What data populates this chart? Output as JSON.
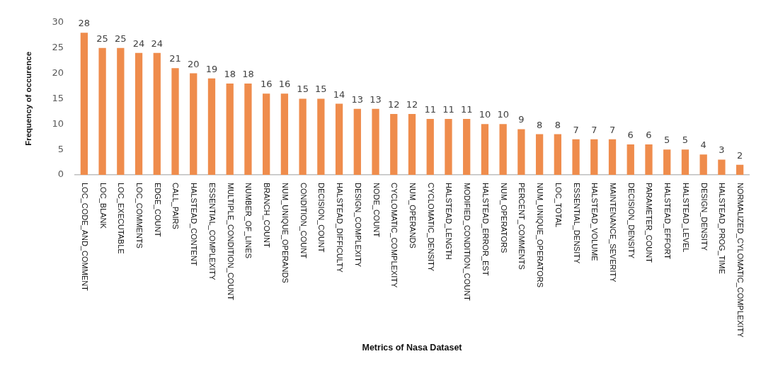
{
  "chart_data": {
    "type": "bar",
    "xlabel": "Metrics of Nasa Dataset",
    "ylabel": "Frequency of occurence",
    "categories": [
      "LOC_CODE_AND_COMMENT",
      "LOC_BLANK",
      "LOC_EXECUTABLE",
      "LOC_COMMENTS",
      "EDGE_COUNT",
      "CALL_PAIRS",
      "HALSTEAD_CONTENT",
      "ESSENTIAL_COMPLEXITY",
      "MULTIPLE_CONDITION_COUNT",
      "NUMBER_OF_LINES",
      "BRANCH_COUNT",
      "NUM_UNIQUE_OPERANDS",
      "CONDITION_COUNT",
      "DECISION_COUNT",
      "HALSTEAD_DIFFICULTY",
      "DESIGN_COMPLEXITY",
      "NODE_COUNT",
      "CYCLOMATIC_COMPLEXITY",
      "NUM_OPERANDS",
      "CYCLOMATIC_DENSITY",
      "HALSTEAD_LENGTH",
      "MODIFIED_CONDITION_COUNT",
      "HALSTEAD_ERROR_EST",
      "NUM_OPERATORS",
      "PERCENT_COMMENTS",
      "NUM_UNIQUE_OPERATORS",
      "LOC_TOTAL",
      "ESSENTIAL_DENSITY",
      "HALSTEAD_VOLUME",
      "MAINTENANCE_SEVERITY",
      "DECISION_DENSITY",
      "PARAMETER_COUNT",
      "HALSTEAD_EFFORT",
      "HALSTEAD_LEVEL",
      "DESIGN_DENSITY",
      "HALSTEAD_PROG_TIME",
      "NORMALIZED_CYLOMATIC_COMPLEXITY"
    ],
    "values": [
      28,
      25,
      25,
      24,
      24,
      21,
      20,
      19,
      18,
      18,
      16,
      16,
      15,
      15,
      14,
      13,
      13,
      12,
      12,
      11,
      11,
      11,
      10,
      10,
      9,
      8,
      8,
      7,
      7,
      7,
      6,
      6,
      5,
      5,
      4,
      3,
      2
    ],
    "color": "#ef8c4c",
    "ylim": [
      0,
      30
    ],
    "yticks": [
      0,
      5,
      10,
      15,
      20,
      25,
      30
    ],
    "data_labels": true
  }
}
